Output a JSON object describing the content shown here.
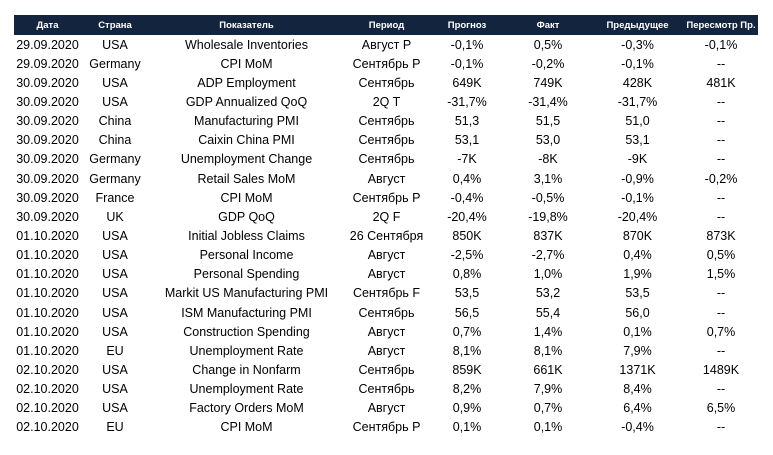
{
  "colors": {
    "header_bg": "#13253e",
    "header_text": "#ffffff",
    "positive": "#1faa3c",
    "negative": "#e0141e"
  },
  "headers": [
    "Дата",
    "Страна",
    "Показатель",
    "Период",
    "Прогноз",
    "Факт",
    "Предыдущее",
    "Пересмотр Пр."
  ],
  "rows": [
    {
      "date": "29.09.2020",
      "country": "USA",
      "indicator": "Wholesale Inventories",
      "period": "Август P",
      "forecast": "-0,1%",
      "actual": "0,5%",
      "actual_color": "negative",
      "previous": "-0,3%",
      "revised": "-0,1%"
    },
    {
      "date": "29.09.2020",
      "country": "Germany",
      "indicator": "CPI MoM",
      "period": "Сентябрь P",
      "forecast": "-0,1%",
      "actual": "-0,2%",
      "actual_color": "negative",
      "previous": "-0,1%",
      "revised": "--"
    },
    {
      "date": "30.09.2020",
      "country": "USA",
      "indicator": "ADP Employment",
      "period": "Сентябрь",
      "forecast": "649K",
      "actual": "749K",
      "actual_color": "positive",
      "previous": "428K",
      "revised": "481K"
    },
    {
      "date": "30.09.2020",
      "country": "USA",
      "indicator": "GDP Annualized QoQ",
      "period": "2Q T",
      "forecast": "-31,7%",
      "actual": "-31,4%",
      "actual_color": "positive",
      "previous": "-31,7%",
      "revised": "--"
    },
    {
      "date": "30.09.2020",
      "country": "China",
      "indicator": "Manufacturing PMI",
      "period": "Сентябрь",
      "forecast": "51,3",
      "actual": "51,5",
      "actual_color": "positive",
      "previous": "51,0",
      "revised": "--"
    },
    {
      "date": "30.09.2020",
      "country": "China",
      "indicator": "Caixin China PMI",
      "period": "Сентябрь",
      "forecast": "53,1",
      "actual": "53,0",
      "actual_color": "negative",
      "previous": "53,1",
      "revised": "--"
    },
    {
      "date": "30.09.2020",
      "country": "Germany",
      "indicator": "Unemployment Change",
      "period": "Сентябрь",
      "forecast": "-7K",
      "actual": "-8K",
      "actual_color": "positive",
      "previous": "-9K",
      "revised": "--"
    },
    {
      "date": "30.09.2020",
      "country": "Germany",
      "indicator": "Retail Sales MoM",
      "period": "Август",
      "forecast": "0,4%",
      "actual": "3,1%",
      "actual_color": "positive",
      "previous": "-0,9%",
      "revised": "-0,2%"
    },
    {
      "date": "30.09.2020",
      "country": "France",
      "indicator": "CPI MoM",
      "period": "Сентябрь P",
      "forecast": "-0,4%",
      "actual": "-0,5%",
      "actual_color": "negative",
      "previous": "-0,1%",
      "revised": "--"
    },
    {
      "date": "30.09.2020",
      "country": "UK",
      "indicator": "GDP QoQ",
      "period": "2Q F",
      "forecast": "-20,4%",
      "actual": "-19,8%",
      "actual_color": "positive",
      "previous": "-20,4%",
      "revised": "--"
    },
    {
      "date": "01.10.2020",
      "country": "USA",
      "indicator": "Initial Jobless Claims",
      "period": "26 Сентября",
      "forecast": "850K",
      "actual": "837K",
      "actual_color": "positive",
      "previous": "870K",
      "revised": "873K"
    },
    {
      "date": "01.10.2020",
      "country": "USA",
      "indicator": "Personal Income",
      "period": "Август",
      "forecast": "-2,5%",
      "actual": "-2,7%",
      "actual_color": "negative",
      "previous": "0,4%",
      "revised": "0,5%"
    },
    {
      "date": "01.10.2020",
      "country": "USA",
      "indicator": "Personal Spending",
      "period": "Август",
      "forecast": "0,8%",
      "actual": "1,0%",
      "actual_color": "positive",
      "previous": "1,9%",
      "revised": "1,5%"
    },
    {
      "date": "01.10.2020",
      "country": "USA",
      "indicator": "Markit US Manufacturing PMI",
      "period": "Сентябрь F",
      "forecast": "53,5",
      "actual": "53,2",
      "actual_color": "negative",
      "previous": "53,5",
      "revised": "--"
    },
    {
      "date": "01.10.2020",
      "country": "USA",
      "indicator": "ISM Manufacturing PMI",
      "period": "Сентябрь",
      "forecast": "56,5",
      "actual": "55,4",
      "actual_color": "negative",
      "previous": "56,0",
      "revised": "--"
    },
    {
      "date": "01.10.2020",
      "country": "USA",
      "indicator": "Construction Spending",
      "period": "Август",
      "forecast": "0,7%",
      "actual": "1,4%",
      "actual_color": "positive",
      "previous": "0,1%",
      "revised": "0,7%"
    },
    {
      "date": "01.10.2020",
      "country": "EU",
      "indicator": "Unemployment Rate",
      "period": "Август",
      "forecast": "8,1%",
      "actual": "8,1%",
      "actual_color": "neutral",
      "previous": "7,9%",
      "revised": "--"
    },
    {
      "date": "02.10.2020",
      "country": "USA",
      "indicator": "Change in Nonfarm",
      "period": "Сентябрь",
      "forecast": "859K",
      "actual": "661K",
      "actual_color": "negative",
      "previous": "1371K",
      "revised": "1489K"
    },
    {
      "date": "02.10.2020",
      "country": "USA",
      "indicator": "Unemployment Rate",
      "period": "Сентябрь",
      "forecast": "8,2%",
      "actual": "7,9%",
      "actual_color": "positive",
      "previous": "8,4%",
      "revised": "--"
    },
    {
      "date": "02.10.2020",
      "country": "USA",
      "indicator": "Factory Orders MoM",
      "period": "Август",
      "forecast": "0,9%",
      "actual": "0,7%",
      "actual_color": "negative",
      "previous": "6,4%",
      "revised": "6,5%"
    },
    {
      "date": "02.10.2020",
      "country": "EU",
      "indicator": "CPI MoM",
      "period": "Сентябрь P",
      "forecast": "0,1%",
      "actual": "0,1%",
      "actual_color": "neutral",
      "previous": "-0,4%",
      "revised": "--"
    }
  ]
}
